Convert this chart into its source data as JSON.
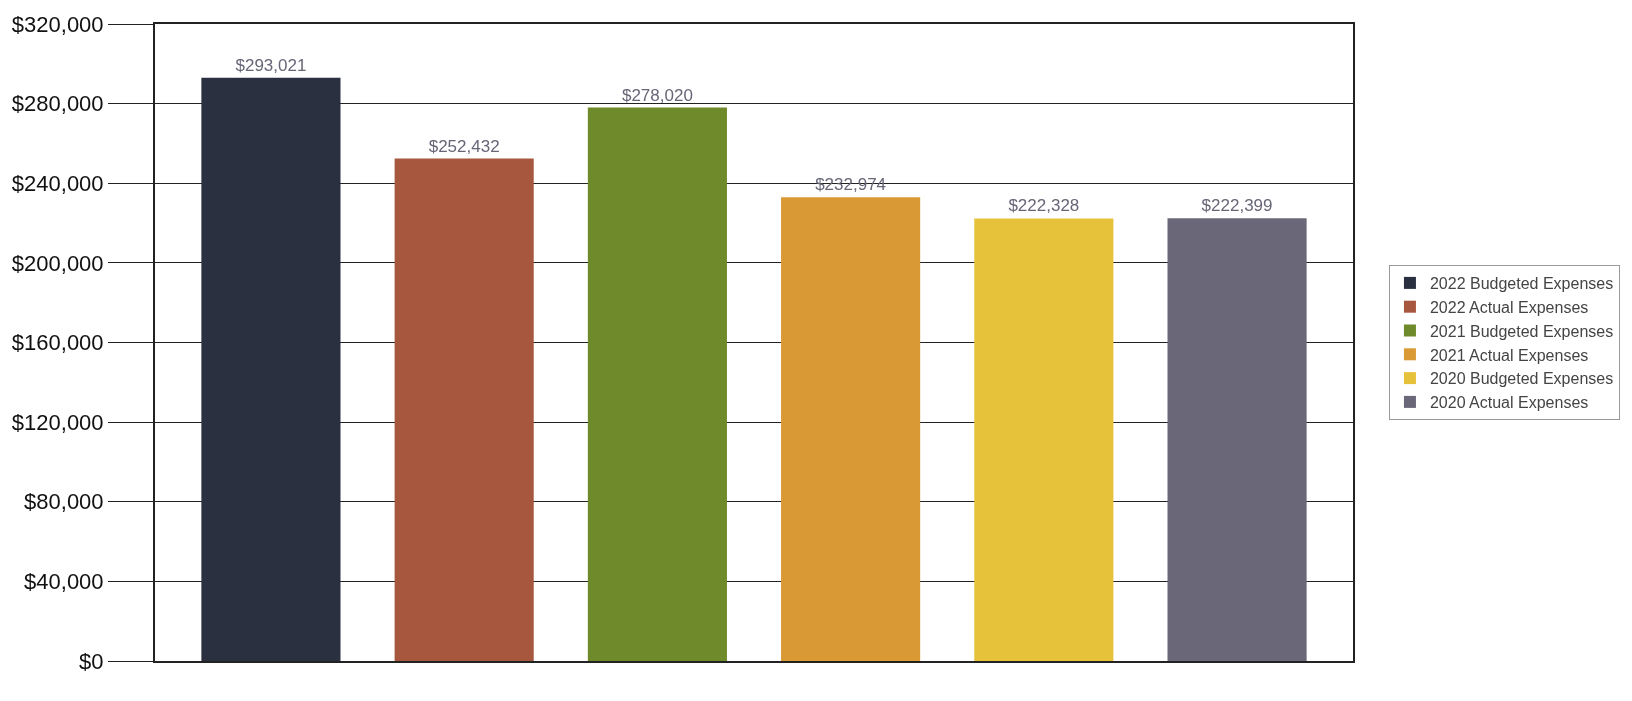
{
  "chart_data": {
    "type": "bar",
    "categories": [
      null,
      null,
      null,
      null,
      null,
      null
    ],
    "series": [
      {
        "name": "2022 Budgeted Expenses",
        "color": "#2b3040",
        "values": [
          293021,
          null,
          null,
          null,
          null,
          null
        ],
        "value_labels": [
          "$293,021",
          null,
          null,
          null,
          null,
          null
        ]
      },
      {
        "name": "2022 Actual Expenses",
        "color": "#a8573f",
        "values": [
          null,
          252432,
          null,
          null,
          null,
          null
        ],
        "value_labels": [
          null,
          "$252,432",
          null,
          null,
          null,
          null
        ]
      },
      {
        "name": "2021 Budgeted Expenses",
        "color": "#6f8a2a",
        "values": [
          null,
          null,
          278020,
          null,
          null,
          null
        ],
        "value_labels": [
          null,
          null,
          "$278,020",
          null,
          null,
          null
        ]
      },
      {
        "name": "2021 Actual Expenses",
        "color": "#d99a35",
        "values": [
          null,
          null,
          null,
          232974,
          null,
          null
        ],
        "value_labels": [
          null,
          null,
          null,
          "$232,974",
          null,
          null
        ]
      },
      {
        "name": "2020 Budgeted Expenses",
        "color": "#e6c23a",
        "values": [
          null,
          null,
          null,
          null,
          222328,
          null
        ],
        "value_labels": [
          null,
          null,
          null,
          null,
          "$222,328",
          null
        ]
      },
      {
        "name": "2020 Actual Expenses",
        "color": "#6a6878",
        "values": [
          null,
          null,
          null,
          null,
          null,
          222399
        ],
        "value_labels": [
          null,
          null,
          null,
          null,
          null,
          "$222,399"
        ]
      }
    ],
    "ylim": [
      0,
      320000
    ],
    "yticks": [
      {
        "value": 0,
        "label": "$0"
      },
      {
        "value": 40000,
        "label": "$40,000"
      },
      {
        "value": 80000,
        "label": "$80,000"
      },
      {
        "value": 120000,
        "label": "$120,000"
      },
      {
        "value": 160000,
        "label": "$160,000"
      },
      {
        "value": 200000,
        "label": "$200,000"
      },
      {
        "value": 240000,
        "label": "$240,000"
      },
      {
        "value": 280000,
        "label": "$280,000"
      },
      {
        "value": 320000,
        "label": "$320,000"
      }
    ],
    "grid": "y",
    "legend": "right",
    "tick_labels": "y"
  }
}
